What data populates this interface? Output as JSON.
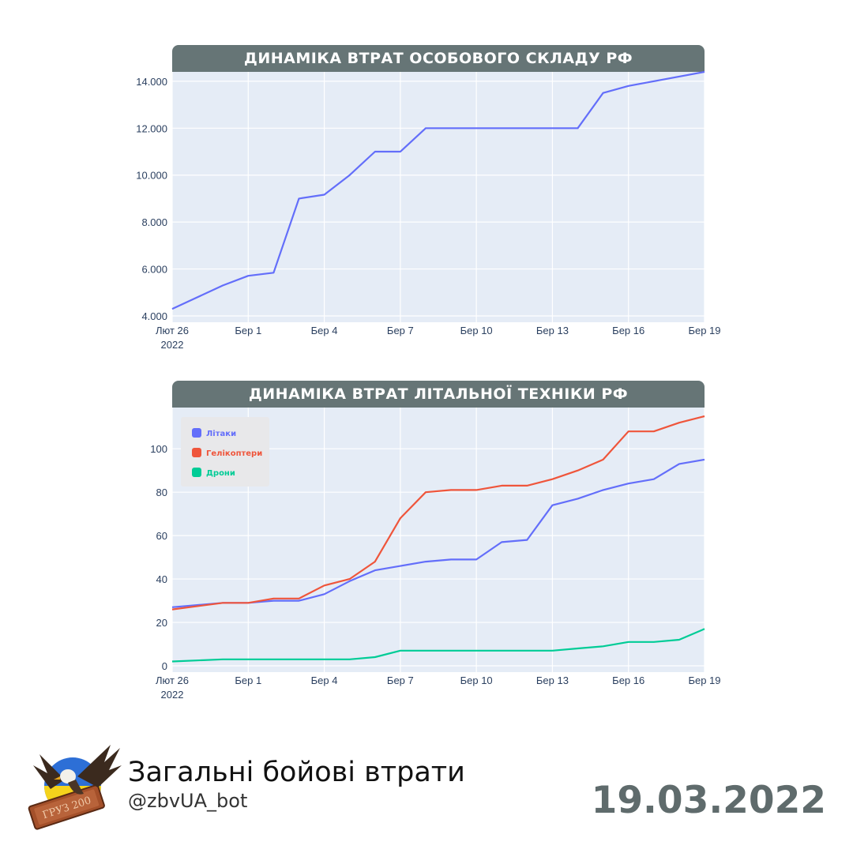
{
  "chart_data": [
    {
      "type": "line",
      "title": "ДИНАМІКА ВТРАТ ОСОБОВОГО СКЛАДУ РФ",
      "x_start": "2022-02-26",
      "x_end": "2022-03-19",
      "x_tick_labels": [
        {
          "date": "2022-02-26",
          "label": "Лют 26",
          "sublabel": "2022"
        },
        {
          "date": "2022-03-01",
          "label": "Бер 1",
          "sublabel": ""
        },
        {
          "date": "2022-03-04",
          "label": "Бер 4",
          "sublabel": ""
        },
        {
          "date": "2022-03-07",
          "label": "Бер 7",
          "sublabel": ""
        },
        {
          "date": "2022-03-10",
          "label": "Бер 10",
          "sublabel": ""
        },
        {
          "date": "2022-03-13",
          "label": "Бер 13",
          "sublabel": ""
        },
        {
          "date": "2022-03-16",
          "label": "Бер 16",
          "sublabel": ""
        },
        {
          "date": "2022-03-19",
          "label": "Бер 19",
          "sublabel": ""
        }
      ],
      "ylim": [
        4000,
        14400
      ],
      "y_ticks": [
        {
          "value": 4000,
          "label": "4.000"
        },
        {
          "value": 6000,
          "label": "6.000"
        },
        {
          "value": 8000,
          "label": "8.000"
        },
        {
          "value": 10000,
          "label": "10.000"
        },
        {
          "value": 12000,
          "label": "12.000"
        },
        {
          "value": 14000,
          "label": "14.000"
        }
      ],
      "grid": true,
      "series": [
        {
          "color": "#636efa",
          "points": [
            {
              "x": "2022-02-26",
              "y": 4300
            },
            {
              "x": "2022-02-28",
              "y": 5300
            },
            {
              "x": "2022-03-01",
              "y": 5710
            },
            {
              "x": "2022-03-02",
              "y": 5840
            },
            {
              "x": "2022-03-03",
              "y": 9000
            },
            {
              "x": "2022-03-04",
              "y": 9166
            },
            {
              "x": "2022-03-05",
              "y": 10000
            },
            {
              "x": "2022-03-06",
              "y": 11000
            },
            {
              "x": "2022-03-07",
              "y": 11000
            },
            {
              "x": "2022-03-08",
              "y": 12000
            },
            {
              "x": "2022-03-14",
              "y": 12000
            },
            {
              "x": "2022-03-15",
              "y": 13500
            },
            {
              "x": "2022-03-16",
              "y": 13800
            },
            {
              "x": "2022-03-19",
              "y": 14400
            }
          ]
        }
      ]
    },
    {
      "type": "line",
      "title": "ДИНАМІКА ВТРАТ ЛІТАЛЬНОЇ ТЕХНІКИ РФ",
      "x_start": "2022-02-26",
      "x_end": "2022-03-19",
      "x_tick_labels": [
        {
          "date": "2022-02-26",
          "label": "Лют 26",
          "sublabel": "2022"
        },
        {
          "date": "2022-03-01",
          "label": "Бер 1",
          "sublabel": ""
        },
        {
          "date": "2022-03-04",
          "label": "Бер 4",
          "sublabel": ""
        },
        {
          "date": "2022-03-07",
          "label": "Бер 7",
          "sublabel": ""
        },
        {
          "date": "2022-03-10",
          "label": "Бер 10",
          "sublabel": ""
        },
        {
          "date": "2022-03-13",
          "label": "Бер 13",
          "sublabel": ""
        },
        {
          "date": "2022-03-16",
          "label": "Бер 16",
          "sublabel": ""
        },
        {
          "date": "2022-03-19",
          "label": "Бер 19",
          "sublabel": ""
        }
      ],
      "ylim": [
        0,
        119
      ],
      "y_ticks": [
        {
          "value": 0,
          "label": "0"
        },
        {
          "value": 20,
          "label": "20"
        },
        {
          "value": 40,
          "label": "40"
        },
        {
          "value": 60,
          "label": "60"
        },
        {
          "value": 80,
          "label": "80"
        },
        {
          "value": 100,
          "label": "100"
        }
      ],
      "grid": true,
      "legend_position": "top-left",
      "series": [
        {
          "name": "Літаки",
          "color": "#636efa",
          "points": [
            {
              "x": "2022-02-26",
              "y": 27
            },
            {
              "x": "2022-02-28",
              "y": 29
            },
            {
              "x": "2022-03-01",
              "y": 29
            },
            {
              "x": "2022-03-02",
              "y": 30
            },
            {
              "x": "2022-03-03",
              "y": 30
            },
            {
              "x": "2022-03-04",
              "y": 33
            },
            {
              "x": "2022-03-05",
              "y": 39
            },
            {
              "x": "2022-03-06",
              "y": 44
            },
            {
              "x": "2022-03-07",
              "y": 46
            },
            {
              "x": "2022-03-08",
              "y": 48
            },
            {
              "x": "2022-03-09",
              "y": 49
            },
            {
              "x": "2022-03-10",
              "y": 49
            },
            {
              "x": "2022-03-11",
              "y": 57
            },
            {
              "x": "2022-03-12",
              "y": 58
            },
            {
              "x": "2022-03-13",
              "y": 74
            },
            {
              "x": "2022-03-14",
              "y": 77
            },
            {
              "x": "2022-03-15",
              "y": 81
            },
            {
              "x": "2022-03-16",
              "y": 84
            },
            {
              "x": "2022-03-17",
              "y": 86
            },
            {
              "x": "2022-03-18",
              "y": 93
            },
            {
              "x": "2022-03-19",
              "y": 95
            }
          ]
        },
        {
          "name": "Гелікоптери",
          "color": "#ef553b",
          "points": [
            {
              "x": "2022-02-26",
              "y": 26
            },
            {
              "x": "2022-02-28",
              "y": 29
            },
            {
              "x": "2022-03-01",
              "y": 29
            },
            {
              "x": "2022-03-02",
              "y": 31
            },
            {
              "x": "2022-03-03",
              "y": 31
            },
            {
              "x": "2022-03-04",
              "y": 37
            },
            {
              "x": "2022-03-05",
              "y": 40
            },
            {
              "x": "2022-03-06",
              "y": 48
            },
            {
              "x": "2022-03-07",
              "y": 68
            },
            {
              "x": "2022-03-08",
              "y": 80
            },
            {
              "x": "2022-03-09",
              "y": 81
            },
            {
              "x": "2022-03-10",
              "y": 81
            },
            {
              "x": "2022-03-11",
              "y": 83
            },
            {
              "x": "2022-03-12",
              "y": 83
            },
            {
              "x": "2022-03-13",
              "y": 86
            },
            {
              "x": "2022-03-14",
              "y": 90
            },
            {
              "x": "2022-03-15",
              "y": 95
            },
            {
              "x": "2022-03-16",
              "y": 108
            },
            {
              "x": "2022-03-17",
              "y": 108
            },
            {
              "x": "2022-03-18",
              "y": 112
            },
            {
              "x": "2022-03-19",
              "y": 115
            }
          ]
        },
        {
          "name": "Дрони",
          "color": "#00cc96",
          "points": [
            {
              "x": "2022-02-26",
              "y": 2
            },
            {
              "x": "2022-02-28",
              "y": 3
            },
            {
              "x": "2022-03-01",
              "y": 3
            },
            {
              "x": "2022-03-02",
              "y": 3
            },
            {
              "x": "2022-03-03",
              "y": 3
            },
            {
              "x": "2022-03-04",
              "y": 3
            },
            {
              "x": "2022-03-05",
              "y": 3
            },
            {
              "x": "2022-03-06",
              "y": 4
            },
            {
              "x": "2022-03-07",
              "y": 7
            },
            {
              "x": "2022-03-08",
              "y": 7
            },
            {
              "x": "2022-03-09",
              "y": 7
            },
            {
              "x": "2022-03-10",
              "y": 7
            },
            {
              "x": "2022-03-11",
              "y": 7
            },
            {
              "x": "2022-03-12",
              "y": 7
            },
            {
              "x": "2022-03-13",
              "y": 7
            },
            {
              "x": "2022-03-14",
              "y": 8
            },
            {
              "x": "2022-03-15",
              "y": 9
            },
            {
              "x": "2022-03-16",
              "y": 11
            },
            {
              "x": "2022-03-17",
              "y": 11
            },
            {
              "x": "2022-03-18",
              "y": 12
            },
            {
              "x": "2022-03-19",
              "y": 17
            }
          ]
        }
      ]
    }
  ],
  "footer": {
    "title": "Загальні бойові втрати",
    "handle": "@zbvUA_bot",
    "date": "19.03.2022",
    "logo_icon": "eagle-coffin-logo-icon",
    "logo_text": "ГРУЗ 200"
  },
  "colors": {
    "header_bg": "#667576",
    "plot_bg": "#e5ecf6",
    "date_color": "#5f6b6c"
  }
}
